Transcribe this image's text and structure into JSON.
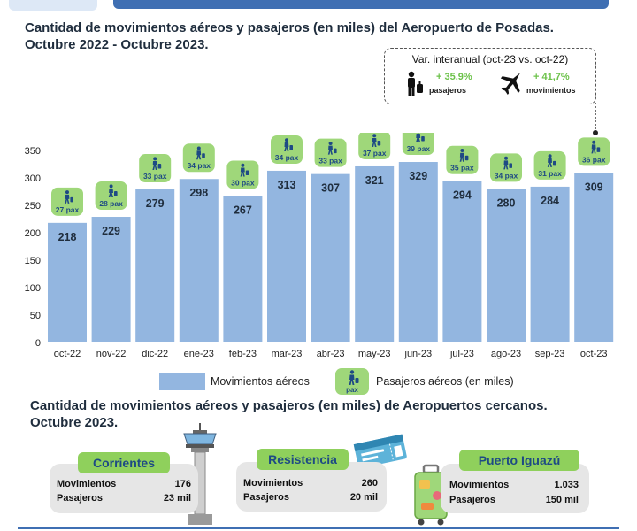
{
  "title_line1": "Cantidad de movimientos aéreos y pasajeros (en miles) del Aeropuerto de Posadas.",
  "title_line2": "Octubre 2022 - Octubre 2023.",
  "variation": {
    "title": "Var. interanual (oct-23 vs. oct-22)",
    "pasajeros_value": "+ 35,9%",
    "pasajeros_label": "pasajeros",
    "movimientos_value": "+ 41,7%",
    "movimientos_label": "movimientos"
  },
  "legend": {
    "movimientos": "Movimientos aéreos",
    "pasajeros": "Pasajeros aéreos (en miles)",
    "pax_badge": "pax"
  },
  "colors": {
    "bar": "#93b6e0",
    "badge": "#9fd77a",
    "accent": "#6cc24a"
  },
  "chart_data": {
    "type": "bar",
    "categories": [
      "oct-22",
      "nov-22",
      "dic-22",
      "ene-23",
      "feb-23",
      "mar-23",
      "abr-23",
      "may-23",
      "jun-23",
      "jul-23",
      "ago-23",
      "sep-23",
      "oct-23"
    ],
    "series": [
      {
        "name": "Movimientos aéreos",
        "values": [
          218,
          229,
          279,
          298,
          267,
          313,
          307,
          321,
          329,
          294,
          280,
          284,
          309
        ]
      },
      {
        "name": "Pasajeros aéreos (en miles)",
        "values": [
          27,
          28,
          33,
          34,
          30,
          34,
          33,
          37,
          39,
          35,
          34,
          31,
          36
        ],
        "labels": [
          "27 pax",
          "28 pax",
          "33 pax",
          "34 pax",
          "30 pax",
          "34 pax",
          "33 pax",
          "37 pax",
          "39 pax",
          "35 pax",
          "34 pax",
          "31 pax",
          "36 pax"
        ]
      }
    ],
    "y_ticks": [
      "0",
      "50",
      "100",
      "150",
      "200",
      "250",
      "300",
      "350"
    ],
    "ylim": [
      0,
      350
    ],
    "legend_position": "bottom"
  },
  "subtitle_line1": "Cantidad de movimientos aéreos y pasajeros (en miles) de Aeropuertos cercanos.",
  "subtitle_line2": "Octubre 2023.",
  "airports": [
    {
      "name": "Corrientes",
      "mov_label": "Movimientos",
      "mov_value": "176",
      "pas_label": "Pasajeros",
      "pas_value": "23 mil"
    },
    {
      "name": "Resistencia",
      "mov_label": "Movimientos",
      "mov_value": "260",
      "pas_label": "Pasajeros",
      "pas_value": "20 mil"
    },
    {
      "name": "Puerto Iguazú",
      "mov_label": "Movimientos",
      "mov_value": "1.033",
      "pas_label": "Pasajeros",
      "pas_value": "150 mil"
    }
  ],
  "icons": [
    "person-luggage-icon",
    "airplane-icon",
    "control-tower-icon",
    "boarding-pass-icon",
    "suitcase-icon"
  ]
}
